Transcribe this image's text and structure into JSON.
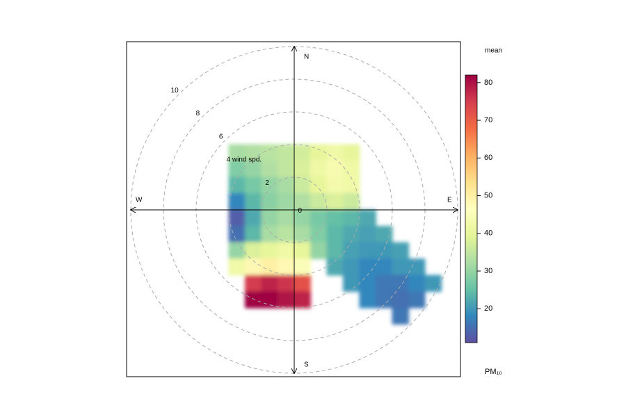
{
  "chart_data": {
    "type": "polar",
    "compass": [
      "N",
      "E",
      "S",
      "W"
    ],
    "rlim": [
      0,
      10
    ],
    "rticks": [
      0,
      2,
      {
        "value": 4,
        "label": "4 wind spd."
      },
      6,
      8,
      10
    ],
    "x": [
      -3.5,
      -2.5,
      -1.5,
      -0.5,
      0.5,
      1.5,
      2.5,
      3.5,
      4.5,
      5.5,
      6.5,
      7.5,
      8.5
    ],
    "y": [
      3.5,
      2.5,
      1.5,
      0.5,
      -0.5,
      -1.5,
      -2.5,
      -3.5,
      -4.5,
      -5.5,
      -6.5
    ],
    "values": [
      [
        32,
        33,
        34,
        35,
        37,
        40,
        42,
        40,
        null,
        null,
        null,
        null,
        null
      ],
      [
        28,
        30,
        33,
        35,
        38,
        42,
        44,
        42,
        null,
        null,
        null,
        null,
        null
      ],
      [
        24,
        27,
        30,
        32,
        36,
        40,
        43,
        42,
        null,
        null,
        null,
        null,
        null
      ],
      [
        18,
        24,
        29,
        31,
        33,
        36,
        38,
        36,
        null,
        null,
        null,
        null,
        null
      ],
      [
        13,
        22,
        30,
        32,
        30,
        27,
        25,
        24,
        22,
        null,
        null,
        null,
        null
      ],
      [
        15,
        24,
        32,
        34,
        32,
        28,
        24,
        22,
        21,
        22,
        null,
        null,
        null
      ],
      [
        30,
        38,
        40,
        42,
        40,
        30,
        24,
        21,
        20,
        20,
        21,
        null,
        null
      ],
      [
        42,
        48,
        50,
        48,
        45,
        null,
        22,
        20,
        18,
        18,
        20,
        20,
        null
      ],
      [
        null,
        75,
        78,
        76,
        72,
        null,
        null,
        20,
        18,
        16,
        16,
        18,
        20
      ],
      [
        null,
        82,
        82,
        80,
        78,
        null,
        null,
        null,
        18,
        16,
        15,
        16,
        null
      ],
      [
        null,
        null,
        null,
        null,
        null,
        null,
        null,
        null,
        null,
        null,
        16,
        null,
        null
      ]
    ],
    "colors": [
      "#5e4fa2",
      "#3288bd",
      "#66c2a5",
      "#abdda4",
      "#e6f598",
      "#ffffbf",
      "#fee08b",
      "#fdae61",
      "#f46d43",
      "#d53e4f",
      "#9e0142"
    ],
    "zlim": [
      11,
      82
    ],
    "colorbar_ticks": [
      20,
      30,
      40,
      50,
      60,
      70,
      80
    ],
    "colorbar_header": "mean",
    "colorbar_title": "PM₁₀"
  }
}
